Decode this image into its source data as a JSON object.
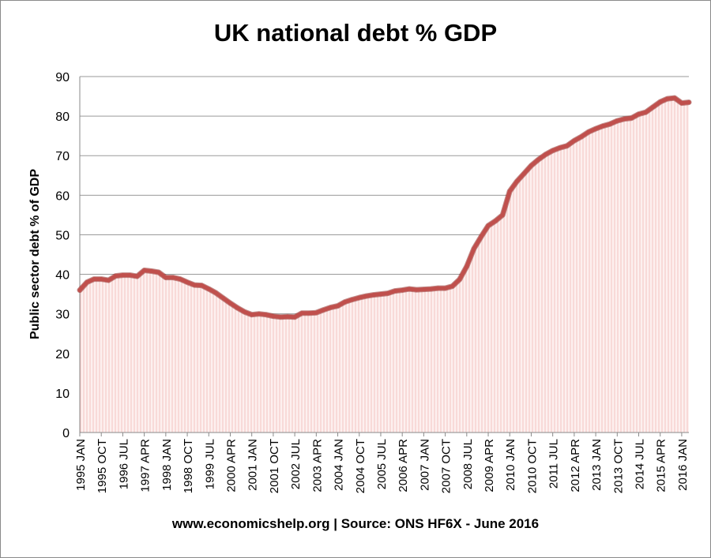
{
  "chart_data": {
    "type": "line",
    "title": "UK national debt % GDP",
    "xlabel": "",
    "ylabel": "Public sector debt % of GDP",
    "footer": "www.economicshelp.org | Source: ONS HF6X - June 2016",
    "ylim": [
      0,
      90
    ],
    "yticks": [
      0,
      10,
      20,
      30,
      40,
      50,
      60,
      70,
      80,
      90
    ],
    "grid": true,
    "legend": "none",
    "line_color": "#c0504d",
    "fill_color": "#f2c4c2",
    "x_range": [
      "1995 JAN",
      "2016 APR"
    ],
    "x_tick_labels": [
      "1995 JAN",
      "1995 OCT",
      "1996 JUL",
      "1997 APR",
      "1998 JAN",
      "1998 OCT",
      "1999 JUL",
      "2000 APR",
      "2001 JAN",
      "2001 OCT",
      "2002 JUL",
      "2003 APR",
      "2004 JAN",
      "2004 OCT",
      "2005 JUL",
      "2006 APR",
      "2007 JAN",
      "2007 OCT",
      "2008 JUL",
      "2009 APR",
      "2010 JAN",
      "2010 OCT",
      "2011 JUL",
      "2012 APR",
      "2013 JAN",
      "2013 OCT",
      "2014 JUL",
      "2015 APR",
      "2016 JAN"
    ],
    "series": [
      {
        "x": [
          "1995 JAN",
          "1995 APR",
          "1995 JUL",
          "1995 OCT",
          "1996 JAN",
          "1996 APR",
          "1996 JUL",
          "1996 OCT",
          "1997 JAN",
          "1997 APR",
          "1997 JUL",
          "1997 OCT",
          "1998 JAN",
          "1998 APR",
          "1998 JUL",
          "1998 OCT",
          "1999 JAN",
          "1999 APR",
          "1999 JUL",
          "1999 OCT",
          "2000 JAN",
          "2000 APR",
          "2000 JUL",
          "2000 OCT",
          "2001 JAN",
          "2001 APR",
          "2001 JUL",
          "2001 OCT",
          "2002 JAN",
          "2002 APR",
          "2002 JUL",
          "2002 OCT",
          "2003 JAN",
          "2003 APR",
          "2003 JUL",
          "2003 OCT",
          "2004 JAN",
          "2004 APR",
          "2004 JUL",
          "2004 OCT",
          "2005 JAN",
          "2005 APR",
          "2005 JUL",
          "2005 OCT",
          "2006 JAN",
          "2006 APR",
          "2006 JUL",
          "2006 OCT",
          "2007 JAN",
          "2007 APR",
          "2007 JUL",
          "2007 OCT",
          "2008 JAN",
          "2008 APR",
          "2008 JUL",
          "2008 OCT",
          "2009 JAN",
          "2009 APR",
          "2009 JUL",
          "2009 OCT",
          "2010 JAN",
          "2010 APR",
          "2010 JUL",
          "2010 OCT",
          "2011 JAN",
          "2011 APR",
          "2011 JUL",
          "2011 OCT",
          "2012 JAN",
          "2012 APR",
          "2012 JUL",
          "2012 OCT",
          "2013 JAN",
          "2013 APR",
          "2013 JUL",
          "2013 OCT",
          "2014 JAN",
          "2014 APR",
          "2014 JUL",
          "2014 OCT",
          "2015 JAN",
          "2015 APR",
          "2015 JUL",
          "2015 OCT",
          "2016 JAN",
          "2016 APR"
        ],
        "values": [
          36,
          38,
          38.8,
          38.8,
          38.5,
          39.6,
          39.8,
          39.8,
          39.5,
          41,
          40.8,
          40.5,
          39.2,
          39.2,
          38.8,
          38,
          37.3,
          37.2,
          36.3,
          35.3,
          34,
          32.7,
          31.5,
          30.5,
          29.8,
          30,
          29.8,
          29.4,
          29.2,
          29.3,
          29.2,
          30.2,
          30.2,
          30.3,
          31,
          31.6,
          32,
          33,
          33.6,
          34.1,
          34.5,
          34.8,
          35,
          35.2,
          35.8,
          36,
          36.3,
          36.1,
          36.2,
          36.3,
          36.5,
          36.5,
          37,
          38.7,
          42,
          46.5,
          49.5,
          52.3,
          53.5,
          55,
          61,
          63.5,
          65.5,
          67.5,
          69,
          70.3,
          71.3,
          72,
          72.5,
          73.8,
          74.8,
          76,
          76.8,
          77.5,
          78,
          78.8,
          79.3,
          79.5,
          80.5,
          81,
          82.3,
          83.6,
          84.4,
          84.6,
          83.3,
          83.5
        ]
      }
    ]
  }
}
